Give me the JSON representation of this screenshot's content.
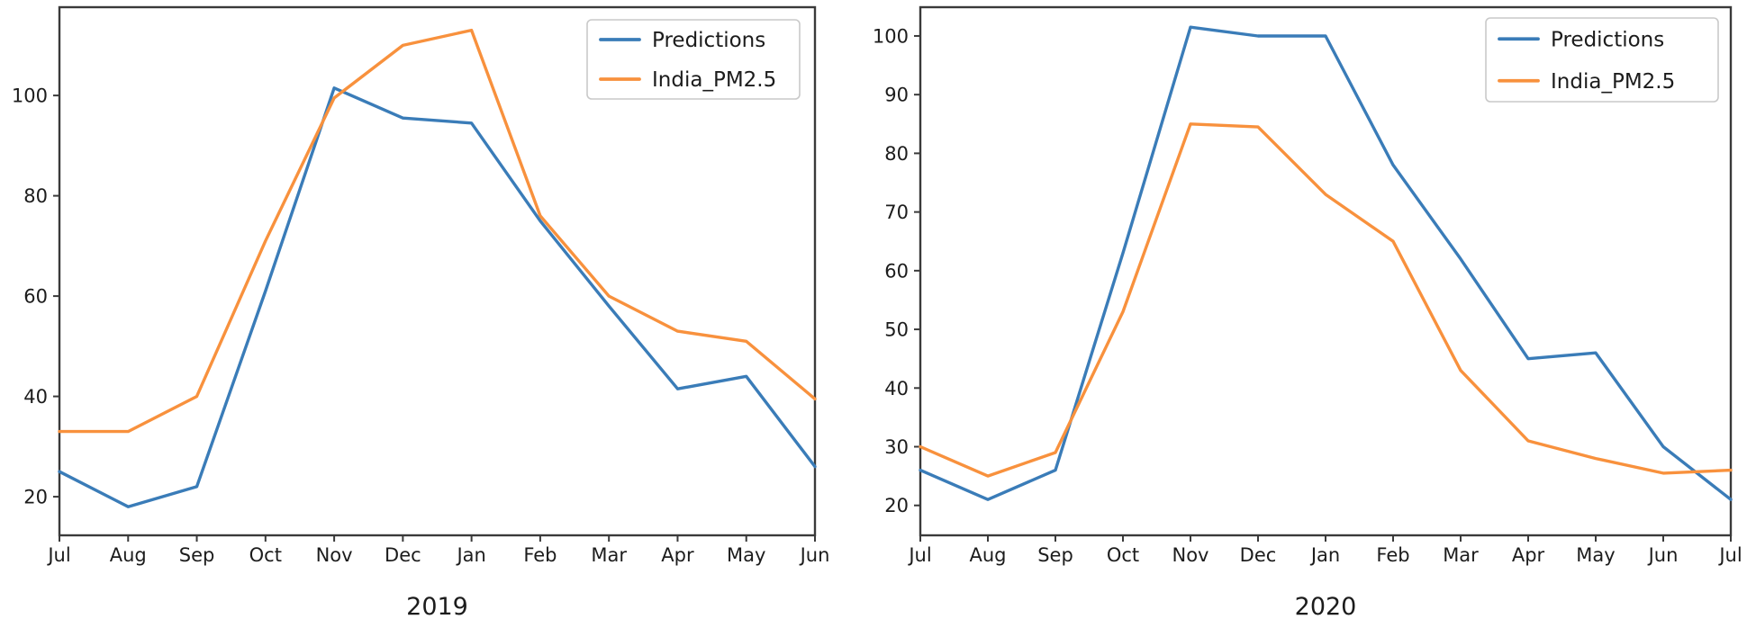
{
  "figure": {
    "background": "#ffffff",
    "text_color": "#1c1c1c",
    "axis_color": "#3a3a3a",
    "legend_border_color": "#c9c9c9"
  },
  "chart_data": [
    {
      "type": "line",
      "title": "",
      "xlabel": "2019",
      "categories": [
        "Jul",
        "Aug",
        "Sep",
        "Oct",
        "Nov",
        "Dec",
        "Jan",
        "Feb",
        "Mar",
        "Apr",
        "May",
        "Jun"
      ],
      "ylim": [
        12.3,
        117.6
      ],
      "yticks": [
        20,
        40,
        60,
        80,
        100
      ],
      "grid": false,
      "legend_position": "upper right",
      "legend_entries": [
        "Predictions",
        "India_PM2.5"
      ],
      "series": [
        {
          "name": "Predictions",
          "color": "#3a7cb8",
          "values": [
            25,
            18,
            22,
            61,
            101.5,
            95.5,
            94.5,
            75,
            58,
            41.5,
            44,
            26
          ]
        },
        {
          "name": "India_PM2.5",
          "color": "#f8913d",
          "values": [
            33,
            33,
            40,
            71,
            99.5,
            110,
            113,
            76,
            60,
            53,
            51,
            39.5
          ]
        }
      ]
    },
    {
      "type": "line",
      "title": "",
      "xlabel": "2020",
      "categories": [
        "Jul",
        "Aug",
        "Sep",
        "Oct",
        "Nov",
        "Dec",
        "Jan",
        "Feb",
        "Mar",
        "Apr",
        "May",
        "Jun",
        "Jul"
      ],
      "ylim": [
        14.9,
        104.9
      ],
      "yticks": [
        20,
        30,
        40,
        50,
        60,
        70,
        80,
        90,
        100
      ],
      "grid": false,
      "legend_position": "upper right",
      "legend_entries": [
        "Predictions",
        "India_PM2.5"
      ],
      "series": [
        {
          "name": "Predictions",
          "color": "#3a7cb8",
          "values": [
            26,
            21,
            26,
            63,
            101.5,
            100,
            100,
            78,
            62,
            45,
            46,
            30,
            21
          ]
        },
        {
          "name": "India_PM2.5",
          "color": "#f8913d",
          "values": [
            30,
            25,
            29,
            53,
            85,
            84.5,
            73,
            65,
            43,
            31,
            28,
            25.5,
            26
          ]
        }
      ]
    }
  ]
}
